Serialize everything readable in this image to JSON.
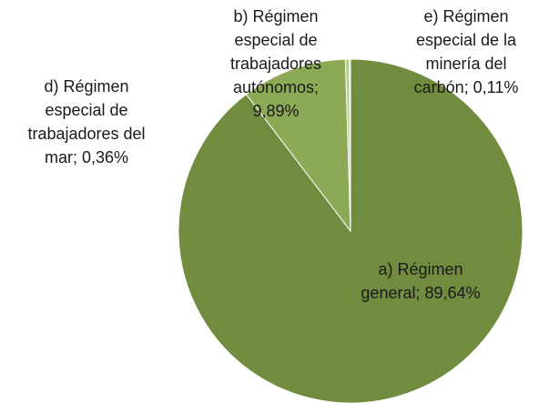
{
  "chart_data": {
    "type": "pie",
    "categories": [
      "a) Régimen general;",
      "b) Régimen especial de trabajadores autónomos;",
      "d) Régimen especial de trabajadores del mar;",
      "e) Régimen especial de la minería del carbón;"
    ],
    "values": [
      89.64,
      9.89,
      0.36,
      0.11
    ],
    "value_labels": [
      "89,64%",
      "9,89%",
      "0,36%",
      "0,11%"
    ],
    "colors": [
      "#718b3f",
      "#8ca956",
      "#b7cb8f",
      "#d7e3bd"
    ]
  }
}
